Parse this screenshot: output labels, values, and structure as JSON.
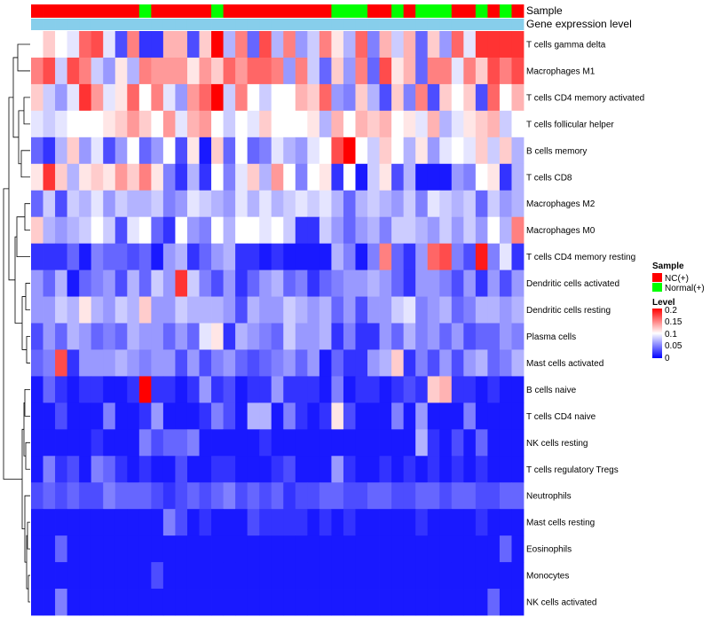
{
  "chart_data": {
    "type": "heatmap",
    "annotation_tracks": [
      "Sample",
      "Gene expression level"
    ],
    "columns": 41,
    "sample_groups": [
      "NC",
      "NC",
      "NC",
      "NC",
      "NC",
      "NC",
      "NC",
      "NC",
      "NC",
      "Normal",
      "NC",
      "NC",
      "NC",
      "NC",
      "NC",
      "Normal",
      "NC",
      "NC",
      "NC",
      "NC",
      "NC",
      "NC",
      "NC",
      "NC",
      "NC",
      "Normal",
      "Normal",
      "Normal",
      "NC",
      "NC",
      "Normal",
      "NC",
      "Normal",
      "Normal",
      "Normal",
      "NC",
      "NC",
      "Normal",
      "NC",
      "Normal",
      "NC"
    ],
    "rows": [
      "T cells gamma delta",
      "Macrophages M1",
      "T cells CD4 memory activated",
      "T cells follicular helper",
      "B cells memory",
      "T cells CD8",
      "Macrophages M2",
      "Macrophages M0",
      "T cells CD4 memory resting",
      "Dendritic cells activated",
      "Dendritic cells resting",
      "Plasma cells",
      "Mast cells activated",
      "B cells naive",
      "T cells CD4 naive",
      "NK cells resting",
      "T cells regulatory  Tregs",
      "Neutrophils",
      "Mast cells resting",
      "Eosinophils",
      "Monocytes",
      "NK cells activated"
    ],
    "values": [
      [
        0.1,
        0.12,
        0.1,
        0.09,
        0.16,
        0.17,
        0.09,
        0.03,
        0.15,
        0.02,
        0.02,
        0.13,
        0.13,
        0.03,
        0.12,
        0.2,
        0.07,
        0.15,
        0.04,
        0.17,
        0.07,
        0.15,
        0.06,
        0.08,
        0.15,
        0.11,
        0.07,
        0.16,
        0.05,
        0.13,
        0.08,
        0.13,
        0.04,
        0.12,
        0.06,
        0.16,
        0.09,
        0.18,
        0.18,
        0.18,
        0.18
      ],
      [
        0.15,
        0.17,
        0.08,
        0.17,
        0.15,
        0.08,
        0.06,
        0.11,
        0.07,
        0.15,
        0.14,
        0.14,
        0.14,
        0.11,
        0.14,
        0.12,
        0.16,
        0.14,
        0.16,
        0.16,
        0.15,
        0.06,
        0.15,
        0.08,
        0.04,
        0.12,
        0.06,
        0.15,
        0.04,
        0.17,
        0.11,
        0.13,
        0.04,
        0.15,
        0.15,
        0.09,
        0.15,
        0.12,
        0.17,
        0.15,
        0.17
      ],
      [
        0.12,
        0.08,
        0.06,
        0.09,
        0.18,
        0.14,
        0.09,
        0.11,
        0.16,
        0.1,
        0.15,
        0.09,
        0.06,
        0.14,
        0.16,
        0.2,
        0.08,
        0.15,
        0.1,
        0.08,
        0.1,
        0.1,
        0.13,
        0.12,
        0.16,
        0.06,
        0.05,
        0.12,
        0.07,
        0.03,
        0.12,
        0.05,
        0.15,
        0.03,
        0.12,
        0.1,
        0.12,
        0.03,
        0.16,
        0.1,
        0.13
      ],
      [
        0.09,
        0.08,
        0.09,
        0.1,
        0.1,
        0.1,
        0.11,
        0.12,
        0.14,
        0.12,
        0.1,
        0.14,
        0.09,
        0.13,
        0.14,
        0.1,
        0.08,
        0.1,
        0.09,
        0.12,
        0.1,
        0.1,
        0.1,
        0.11,
        0.07,
        0.13,
        0.1,
        0.13,
        0.12,
        0.13,
        0.1,
        0.11,
        0.09,
        0.13,
        0.07,
        0.09,
        0.11,
        0.12,
        0.13,
        0.08,
        0.1
      ],
      [
        0.04,
        0.02,
        0.07,
        0.12,
        0.06,
        0.09,
        0.03,
        0.06,
        0.1,
        0.04,
        0.06,
        0.1,
        0.03,
        0.11,
        0.01,
        0.12,
        0.04,
        0.1,
        0.04,
        0.05,
        0.09,
        0.07,
        0.06,
        0.09,
        0.1,
        0.17,
        0.21,
        0.1,
        0.08,
        0.12,
        0.1,
        0.07,
        0.11,
        0.06,
        0.09,
        0.1,
        0.09,
        0.12,
        0.08,
        0.12,
        0.07
      ],
      [
        0.11,
        0.18,
        0.12,
        0.07,
        0.11,
        0.12,
        0.11,
        0.14,
        0.12,
        0.15,
        0.11,
        0.05,
        0.02,
        0.07,
        0.02,
        0.1,
        0.05,
        0.09,
        0.12,
        0.07,
        0.14,
        0.1,
        0.05,
        0.1,
        0.11,
        0.02,
        0.1,
        0.01,
        0.08,
        0.11,
        0.03,
        0.07,
        0.01,
        0.01,
        0.01,
        0.06,
        0.05,
        0.1,
        0.11,
        0.02,
        0.07
      ],
      [
        0.04,
        0.08,
        0.03,
        0.08,
        0.07,
        0.09,
        0.06,
        0.08,
        0.07,
        0.07,
        0.08,
        0.05,
        0.06,
        0.09,
        0.08,
        0.07,
        0.06,
        0.09,
        0.07,
        0.09,
        0.07,
        0.08,
        0.09,
        0.08,
        0.09,
        0.07,
        0.04,
        0.07,
        0.08,
        0.07,
        0.06,
        0.08,
        0.05,
        0.09,
        0.08,
        0.07,
        0.08,
        0.04,
        0.08,
        0.06,
        0.07
      ],
      [
        0.12,
        0.07,
        0.06,
        0.07,
        0.08,
        0.1,
        0.08,
        0.03,
        0.09,
        0.1,
        0.04,
        0.02,
        0.1,
        0.06,
        0.05,
        0.1,
        0.07,
        0.1,
        0.1,
        0.09,
        0.1,
        0.08,
        0.02,
        0.02,
        0.08,
        0.06,
        0.04,
        0.06,
        0.07,
        0.05,
        0.08,
        0.08,
        0.07,
        0.06,
        0.08,
        0.06,
        0.08,
        0.06,
        0.1,
        0.07,
        0.15
      ],
      [
        0.02,
        0.02,
        0.02,
        0.04,
        0.01,
        0.05,
        0.04,
        0.04,
        0.03,
        0.04,
        0.01,
        0.06,
        0.07,
        0.02,
        0.04,
        0.06,
        0.07,
        0.02,
        0.02,
        0.01,
        0.02,
        0.01,
        0.01,
        0.01,
        0.01,
        0.07,
        0.05,
        0.01,
        0.05,
        0.15,
        0.04,
        0.02,
        0.06,
        0.16,
        0.17,
        0.05,
        0.03,
        0.19,
        0.05,
        0.09,
        0.02
      ],
      [
        0.06,
        0.04,
        0.07,
        0.01,
        0.04,
        0.05,
        0.06,
        0.03,
        0.07,
        0.04,
        0.08,
        0.06,
        0.18,
        0.08,
        0.05,
        0.03,
        0.06,
        0.02,
        0.04,
        0.06,
        0.07,
        0.04,
        0.05,
        0.02,
        0.04,
        0.05,
        0.06,
        0.06,
        0.07,
        0.06,
        0.04,
        0.02,
        0.06,
        0.06,
        0.05,
        0.03,
        0.06,
        0.02,
        0.06,
        0.03,
        0.06
      ],
      [
        0.06,
        0.06,
        0.08,
        0.07,
        0.11,
        0.07,
        0.06,
        0.08,
        0.07,
        0.12,
        0.06,
        0.06,
        0.08,
        0.07,
        0.07,
        0.07,
        0.06,
        0.03,
        0.07,
        0.06,
        0.06,
        0.08,
        0.07,
        0.06,
        0.07,
        0.04,
        0.06,
        0.03,
        0.06,
        0.06,
        0.08,
        0.09,
        0.05,
        0.06,
        0.07,
        0.04,
        0.05,
        0.07,
        0.07,
        0.06,
        0.07
      ],
      [
        0.03,
        0.06,
        0.04,
        0.07,
        0.06,
        0.04,
        0.05,
        0.04,
        0.07,
        0.06,
        0.06,
        0.04,
        0.06,
        0.04,
        0.09,
        0.11,
        0.02,
        0.07,
        0.06,
        0.05,
        0.04,
        0.08,
        0.06,
        0.06,
        0.07,
        0.02,
        0.05,
        0.02,
        0.02,
        0.06,
        0.04,
        0.07,
        0.05,
        0.06,
        0.04,
        0.06,
        0.03,
        0.04,
        0.04,
        0.06,
        0.05
      ],
      [
        0.04,
        0.05,
        0.17,
        0.02,
        0.06,
        0.06,
        0.06,
        0.07,
        0.06,
        0.05,
        0.06,
        0.06,
        0.03,
        0.06,
        0.03,
        0.05,
        0.06,
        0.04,
        0.03,
        0.04,
        0.05,
        0.06,
        0.04,
        0.06,
        0.01,
        0.04,
        0.02,
        0.02,
        0.06,
        0.07,
        0.12,
        0.02,
        0.05,
        0.03,
        0.06,
        0.03,
        0.06,
        0.07,
        0.04,
        0.05,
        0.07
      ],
      [
        0.01,
        0.04,
        0.02,
        0.01,
        0.02,
        0.02,
        0.01,
        0.01,
        0.02,
        0.21,
        0.02,
        0.02,
        0.01,
        0.02,
        0.06,
        0.02,
        0.03,
        0.01,
        0.02,
        0.02,
        0.06,
        0.02,
        0.02,
        0.02,
        0.01,
        0.05,
        0.01,
        0.02,
        0.02,
        0.01,
        0.02,
        0.03,
        0.02,
        0.12,
        0.13,
        0.02,
        0.02,
        0.01,
        0.02,
        0.01,
        0.01
      ],
      [
        0.01,
        0.01,
        0.03,
        0.01,
        0.01,
        0.01,
        0.05,
        0.01,
        0.01,
        0.02,
        0.06,
        0.01,
        0.01,
        0.01,
        0.02,
        0.05,
        0.03,
        0.01,
        0.07,
        0.07,
        0.01,
        0.05,
        0.02,
        0.01,
        0.02,
        0.11,
        0.03,
        0.01,
        0.01,
        0.01,
        0.05,
        0.01,
        0.06,
        0.01,
        0.01,
        0.01,
        0.05,
        0.01,
        0.01,
        0.01,
        0.01
      ],
      [
        0.01,
        0.01,
        0.01,
        0.01,
        0.01,
        0.02,
        0.01,
        0.01,
        0.01,
        0.05,
        0.03,
        0.04,
        0.04,
        0.05,
        0.01,
        0.01,
        0.01,
        0.01,
        0.01,
        0.02,
        0.01,
        0.01,
        0.01,
        0.01,
        0.01,
        0.01,
        0.01,
        0.01,
        0.01,
        0.01,
        0.01,
        0.01,
        0.07,
        0.02,
        0.01,
        0.03,
        0.01,
        0.04,
        0.01,
        0.01,
        0.01
      ],
      [
        0.01,
        0.05,
        0.02,
        0.03,
        0.01,
        0.05,
        0.04,
        0.02,
        0.01,
        0.02,
        0.01,
        0.01,
        0.03,
        0.01,
        0.01,
        0.02,
        0.02,
        0.01,
        0.01,
        0.01,
        0.02,
        0.03,
        0.01,
        0.01,
        0.01,
        0.06,
        0.02,
        0.01,
        0.01,
        0.02,
        0.01,
        0.02,
        0.01,
        0.02,
        0.01,
        0.02,
        0.01,
        0.02,
        0.01,
        0.01,
        0.01
      ],
      [
        0.03,
        0.04,
        0.03,
        0.04,
        0.03,
        0.03,
        0.05,
        0.04,
        0.04,
        0.04,
        0.03,
        0.02,
        0.03,
        0.04,
        0.03,
        0.04,
        0.05,
        0.03,
        0.04,
        0.03,
        0.04,
        0.02,
        0.03,
        0.03,
        0.04,
        0.04,
        0.03,
        0.03,
        0.04,
        0.04,
        0.03,
        0.03,
        0.04,
        0.04,
        0.03,
        0.04,
        0.04,
        0.03,
        0.03,
        0.04,
        0.04
      ],
      [
        0.01,
        0.01,
        0.01,
        0.01,
        0.01,
        0.01,
        0.01,
        0.01,
        0.01,
        0.01,
        0.01,
        0.05,
        0.03,
        0.01,
        0.02,
        0.01,
        0.01,
        0.01,
        0.03,
        0.02,
        0.02,
        0.02,
        0.02,
        0.01,
        0.02,
        0.01,
        0.02,
        0.01,
        0.01,
        0.01,
        0.01,
        0.01,
        0.02,
        0.01,
        0.01,
        0.01,
        0.01,
        0.02,
        0.01,
        0.01,
        0.01
      ],
      [
        0.01,
        0.01,
        0.04,
        0.01,
        0.01,
        0.01,
        0.01,
        0.01,
        0.01,
        0.01,
        0.01,
        0.01,
        0.01,
        0.01,
        0.01,
        0.01,
        0.01,
        0.01,
        0.01,
        0.01,
        0.01,
        0.01,
        0.01,
        0.01,
        0.01,
        0.01,
        0.01,
        0.01,
        0.01,
        0.01,
        0.01,
        0.01,
        0.01,
        0.01,
        0.01,
        0.01,
        0.01,
        0.01,
        0.01,
        0.04,
        0.01
      ],
      [
        0.01,
        0.01,
        0.01,
        0.01,
        0.01,
        0.01,
        0.01,
        0.01,
        0.01,
        0.01,
        0.03,
        0.01,
        0.01,
        0.01,
        0.01,
        0.01,
        0.01,
        0.01,
        0.01,
        0.01,
        0.01,
        0.01,
        0.01,
        0.01,
        0.01,
        0.01,
        0.01,
        0.01,
        0.01,
        0.01,
        0.01,
        0.01,
        0.01,
        0.01,
        0.01,
        0.01,
        0.01,
        0.01,
        0.01,
        0.01,
        0.01
      ],
      [
        0.01,
        0.01,
        0.05,
        0.01,
        0.01,
        0.01,
        0.01,
        0.01,
        0.01,
        0.01,
        0.01,
        0.01,
        0.01,
        0.01,
        0.01,
        0.01,
        0.01,
        0.01,
        0.01,
        0.01,
        0.01,
        0.01,
        0.01,
        0.01,
        0.01,
        0.01,
        0.01,
        0.01,
        0.01,
        0.01,
        0.01,
        0.01,
        0.01,
        0.01,
        0.01,
        0.01,
        0.01,
        0.01,
        0.04,
        0.01,
        0.01
      ]
    ],
    "color_scale": {
      "min": 0,
      "mid": 0.1,
      "max": 0.2,
      "low": "#0000ff",
      "midColor": "#ffffff",
      "high": "#ff0000"
    },
    "sample_colors": {
      "NC": "#ff0000",
      "Normal": "#00ff00"
    },
    "expression_color": "#87ceeb"
  },
  "legend": {
    "sample_title": "Sample",
    "sample_items": [
      {
        "label": "NC(+)",
        "color": "#ff0000"
      },
      {
        "label": "Normal(+)",
        "color": "#00ff00"
      }
    ],
    "level_title": "Level",
    "level_ticks": [
      "0.2",
      "0.15",
      "0.1",
      "0.05",
      "0"
    ]
  }
}
